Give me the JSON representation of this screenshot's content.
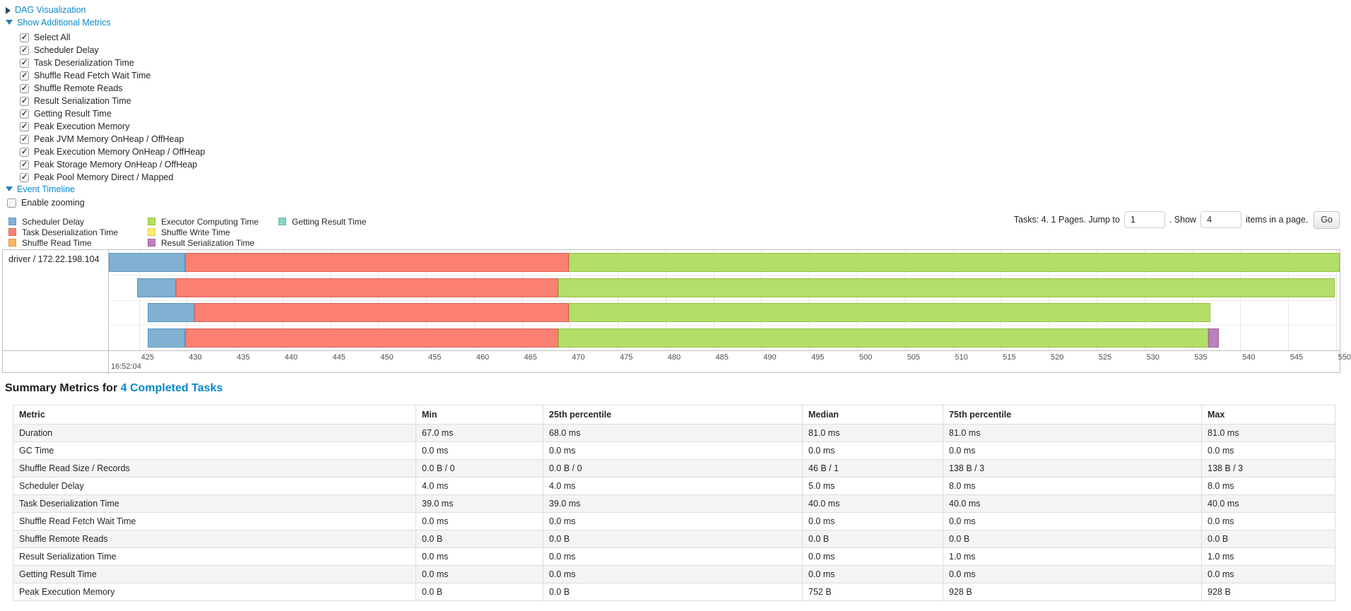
{
  "links": {
    "dag": "DAG Visualization",
    "metrics": "Show Additional Metrics",
    "timeline": "Event Timeline",
    "enable_zooming": "Enable zooming"
  },
  "metrics_panel": {
    "items": [
      {
        "label": "Select All",
        "checked": true
      },
      {
        "label": "Scheduler Delay",
        "checked": true
      },
      {
        "label": "Task Deserialization Time",
        "checked": true
      },
      {
        "label": "Shuffle Read Fetch Wait Time",
        "checked": true
      },
      {
        "label": "Shuffle Remote Reads",
        "checked": true
      },
      {
        "label": "Result Serialization Time",
        "checked": true
      },
      {
        "label": "Getting Result Time",
        "checked": true
      },
      {
        "label": "Peak Execution Memory",
        "checked": true
      },
      {
        "label": "Peak JVM Memory OnHeap / OffHeap",
        "checked": true
      },
      {
        "label": "Peak Execution Memory OnHeap / OffHeap",
        "checked": true
      },
      {
        "label": "Peak Storage Memory OnHeap / OffHeap",
        "checked": true
      },
      {
        "label": "Peak Pool Memory Direct / Mapped",
        "checked": true
      }
    ]
  },
  "legend": {
    "columns": [
      [
        "scheduler_delay",
        "task_deserialization_time",
        "shuffle_read_time"
      ],
      [
        "executor_computing_time",
        "shuffle_write_time",
        "result_serialization_time"
      ],
      [
        "getting_result_time"
      ]
    ],
    "labels": {
      "scheduler_delay": "Scheduler Delay",
      "task_deserialization_time": "Task Deserialization Time",
      "shuffle_read_time": "Shuffle Read Time",
      "executor_computing_time": "Executor Computing Time",
      "shuffle_write_time": "Shuffle Write Time",
      "result_serialization_time": "Result Serialization Time",
      "getting_result_time": "Getting Result Time"
    }
  },
  "colors": {
    "scheduler_delay": {
      "fill": "#80B1D3",
      "border": "#5E97BD"
    },
    "task_deserialization_time": {
      "fill": "#FB8072",
      "border": "#D96459"
    },
    "shuffle_read_time": {
      "fill": "#FDB462",
      "border": "#DE9745"
    },
    "executor_computing_time": {
      "fill": "#B3DE69",
      "border": "#96C23F"
    },
    "shuffle_write_time": {
      "fill": "#FFED6F",
      "border": "#E0CC4E"
    },
    "result_serialization_time": {
      "fill": "#BC80BD",
      "border": "#A263A3"
    },
    "getting_result_time": {
      "fill": "#8DD3C7",
      "border": "#69B8AA"
    }
  },
  "pagination": {
    "prefix": "Tasks: 4. 1 Pages. Jump to",
    "jump_value": "1",
    "dot_show": ". Show",
    "show_value": "4",
    "suffix": "items in a page.",
    "go": "Go"
  },
  "chart_data": {
    "type": "timeline",
    "title": "Event Timeline",
    "group_label": "driver / 172.22.198.104",
    "x_axis": {
      "major_label": "16:52:04",
      "unit": "milliseconds within 16:52:04",
      "ticks": [
        425,
        430,
        435,
        440,
        445,
        450,
        455,
        460,
        465,
        470,
        475,
        480,
        485,
        490,
        495,
        500,
        505,
        510,
        515,
        520,
        525,
        530,
        535,
        540,
        545,
        550
      ],
      "window": {
        "start": 421.86,
        "end": 550.4
      }
    },
    "tasks": [
      {
        "segments": [
          {
            "type": "scheduler_delay",
            "start": 421.86,
            "end": 429.8
          },
          {
            "type": "task_deserialization_time",
            "start": 429.8,
            "end": 469.9
          },
          {
            "type": "executor_computing_time",
            "start": 469.9,
            "end": 551.0
          }
        ]
      },
      {
        "segments": [
          {
            "type": "scheduler_delay",
            "start": 424.78,
            "end": 428.84
          },
          {
            "type": "task_deserialization_time",
            "start": 428.84,
            "end": 468.8
          },
          {
            "type": "executor_computing_time",
            "start": 468.8,
            "end": 549.9
          }
        ]
      },
      {
        "segments": [
          {
            "type": "scheduler_delay",
            "start": 425.9,
            "end": 430.8
          },
          {
            "type": "task_deserialization_time",
            "start": 430.8,
            "end": 469.9
          },
          {
            "type": "executor_computing_time",
            "start": 469.9,
            "end": 536.9
          }
        ]
      },
      {
        "segments": [
          {
            "type": "scheduler_delay",
            "start": 425.9,
            "end": 429.8
          },
          {
            "type": "task_deserialization_time",
            "start": 429.8,
            "end": 468.8
          },
          {
            "type": "executor_computing_time",
            "start": 468.8,
            "end": 536.7
          },
          {
            "type": "result_serialization_time",
            "start": 536.7,
            "end": 537.8
          }
        ]
      }
    ]
  },
  "summary": {
    "title_prefix": "Summary Metrics for",
    "title_link": "4 Completed Tasks",
    "columns": [
      "Metric",
      "Min",
      "25th percentile",
      "Median",
      "75th percentile",
      "Max"
    ],
    "rows": [
      {
        "metric": "Duration",
        "values": [
          "67.0 ms",
          "68.0 ms",
          "81.0 ms",
          "81.0 ms",
          "81.0 ms"
        ]
      },
      {
        "metric": "GC Time",
        "values": [
          "0.0 ms",
          "0.0 ms",
          "0.0 ms",
          "0.0 ms",
          "0.0 ms"
        ]
      },
      {
        "metric": "Shuffle Read Size / Records",
        "values": [
          "0.0 B / 0",
          "0.0 B / 0",
          "46 B / 1",
          "138 B / 3",
          "138 B / 3"
        ]
      },
      {
        "metric": "Scheduler Delay",
        "values": [
          "4.0 ms",
          "4.0 ms",
          "5.0 ms",
          "8.0 ms",
          "8.0 ms"
        ]
      },
      {
        "metric": "Task Deserialization Time",
        "values": [
          "39.0 ms",
          "39.0 ms",
          "40.0 ms",
          "40.0 ms",
          "40.0 ms"
        ]
      },
      {
        "metric": "Shuffle Read Fetch Wait Time",
        "values": [
          "0.0 ms",
          "0.0 ms",
          "0.0 ms",
          "0.0 ms",
          "0.0 ms"
        ]
      },
      {
        "metric": "Shuffle Remote Reads",
        "values": [
          "0.0 B",
          "0.0 B",
          "0.0 B",
          "0.0 B",
          "0.0 B"
        ]
      },
      {
        "metric": "Result Serialization Time",
        "values": [
          "0.0 ms",
          "0.0 ms",
          "0.0 ms",
          "1.0 ms",
          "1.0 ms"
        ]
      },
      {
        "metric": "Getting Result Time",
        "values": [
          "0.0 ms",
          "0.0 ms",
          "0.0 ms",
          "0.0 ms",
          "0.0 ms"
        ]
      },
      {
        "metric": "Peak Execution Memory",
        "values": [
          "0.0 B",
          "0.0 B",
          "752 B",
          "928 B",
          "928 B"
        ]
      }
    ]
  }
}
